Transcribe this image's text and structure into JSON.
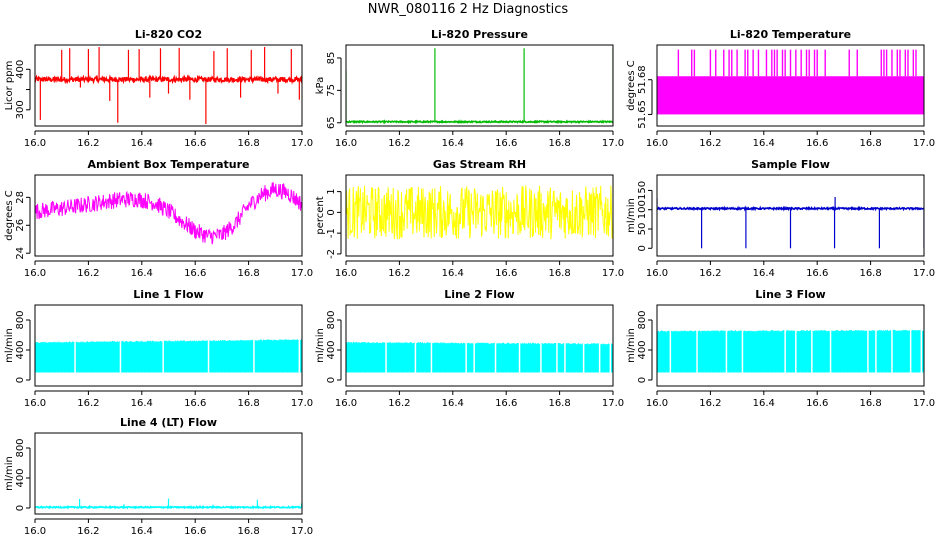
{
  "page_title": "NWR_080116  2 Hz Diagnostics",
  "chart_data": [
    {
      "type": "line",
      "title": "Li-820 CO2",
      "ylabel": "Licor ppm",
      "xlim": [
        16.0,
        17.0
      ],
      "ylim": [
        260,
        460
      ],
      "xticks": [
        "16.0",
        "16.2",
        "16.4",
        "16.6",
        "16.8",
        "17.0"
      ],
      "yticks": [
        300,
        350,
        400
      ],
      "yticklabels": [
        "300",
        "",
        "400"
      ],
      "color": "#ff0000",
      "series": [
        {
          "baseline": 375,
          "noise": 6,
          "spikes": [
            {
              "x": 16.02,
              "y": 275
            },
            {
              "x": 16.1,
              "y": 448
            },
            {
              "x": 16.13,
              "y": 452
            },
            {
              "x": 16.17,
              "y": 355
            },
            {
              "x": 16.2,
              "y": 450
            },
            {
              "x": 16.24,
              "y": 455
            },
            {
              "x": 16.28,
              "y": 322
            },
            {
              "x": 16.31,
              "y": 268
            },
            {
              "x": 16.35,
              "y": 448
            },
            {
              "x": 16.39,
              "y": 450
            },
            {
              "x": 16.43,
              "y": 330
            },
            {
              "x": 16.47,
              "y": 452
            },
            {
              "x": 16.5,
              "y": 340
            },
            {
              "x": 16.54,
              "y": 453
            },
            {
              "x": 16.58,
              "y": 325
            },
            {
              "x": 16.64,
              "y": 265
            },
            {
              "x": 16.67,
              "y": 445
            },
            {
              "x": 16.72,
              "y": 452
            },
            {
              "x": 16.77,
              "y": 330
            },
            {
              "x": 16.81,
              "y": 448
            },
            {
              "x": 16.86,
              "y": 455
            },
            {
              "x": 16.91,
              "y": 340
            },
            {
              "x": 16.96,
              "y": 450
            },
            {
              "x": 16.99,
              "y": 325
            }
          ]
        }
      ]
    },
    {
      "type": "line",
      "title": "Li-820 Pressure",
      "ylabel": "kPa",
      "xlim": [
        16.0,
        17.0
      ],
      "ylim": [
        64,
        89
      ],
      "xticks": [
        "16.0",
        "16.2",
        "16.4",
        "16.6",
        "16.8",
        "17.0"
      ],
      "yticks": [
        65,
        75,
        85
      ],
      "yticklabels": [
        "65",
        "75",
        "85"
      ],
      "color": "#00bb00",
      "series": [
        {
          "baseline": 65.3,
          "noise": 0.2,
          "spikes": [
            {
              "x": 16.0,
              "y": 81
            },
            {
              "x": 16.333,
              "y": 88
            },
            {
              "x": 16.667,
              "y": 88
            },
            {
              "x": 17.0,
              "y": 88
            }
          ]
        }
      ]
    },
    {
      "type": "line",
      "title": "Li-820 Temperature",
      "ylabel": "degrees C",
      "xlim": [
        16.0,
        17.0
      ],
      "ylim": [
        51.64,
        51.71
      ],
      "xticks": [
        "16.0",
        "16.2",
        "16.4",
        "16.6",
        "16.8",
        "17.0"
      ],
      "yticks": [
        51.65,
        51.68
      ],
      "yticklabels": [
        "51.65",
        "51.68"
      ],
      "color": "#ff00ff",
      "series": [
        {
          "band_low": 51.65,
          "band_high": 51.683,
          "spike_top": 51.706,
          "spike_xs": [
            16.08,
            16.13,
            16.14,
            16.2,
            16.22,
            16.25,
            16.27,
            16.28,
            16.3,
            16.33,
            16.34,
            16.36,
            16.38,
            16.41,
            16.43,
            16.44,
            16.45,
            16.47,
            16.48,
            16.5,
            16.52,
            16.54,
            16.56,
            16.57,
            16.59,
            16.6,
            16.63,
            16.72,
            16.75,
            16.84,
            16.85,
            16.86,
            16.88,
            16.9,
            16.91,
            16.93,
            16.94,
            16.96,
            16.97
          ]
        }
      ]
    },
    {
      "type": "line",
      "title": "Ambient Box Temperature",
      "ylabel": "degrees C",
      "xlim": [
        16.0,
        17.0
      ],
      "ylim": [
        23.8,
        29.6
      ],
      "xticks": [
        "16.0",
        "16.2",
        "16.4",
        "16.6",
        "16.8",
        "17.0"
      ],
      "yticks": [
        24,
        26,
        28
      ],
      "yticklabels": [
        "24",
        "26",
        "28"
      ],
      "color": "#ff00ff",
      "series": [
        {
          "x": [
            16.0,
            16.1,
            16.2,
            16.3,
            16.38,
            16.45,
            16.5,
            16.55,
            16.6,
            16.65,
            16.7,
            16.75,
            16.8,
            16.85,
            16.9,
            16.95,
            17.0
          ],
          "y": [
            27.0,
            27.2,
            27.5,
            27.8,
            27.9,
            27.6,
            27.0,
            26.3,
            25.6,
            25.2,
            25.3,
            26.1,
            27.4,
            28.2,
            28.6,
            28.3,
            27.5
          ],
          "noise": 0.6
        }
      ]
    },
    {
      "type": "line",
      "title": "Gas Stream RH",
      "ylabel": "percent",
      "xlim": [
        16.0,
        17.0
      ],
      "ylim": [
        -2.1,
        1.8
      ],
      "xticks": [
        "16.0",
        "16.2",
        "16.4",
        "16.6",
        "16.8",
        "17.0"
      ],
      "yticks": [
        -2,
        -1,
        0,
        1
      ],
      "yticklabels": [
        "-2",
        "-1",
        "0",
        "1"
      ],
      "color": "#ffff00",
      "series": [
        {
          "baseline": 0.0,
          "noise": 1.3,
          "min": -1.9,
          "max": 1.7
        }
      ]
    },
    {
      "type": "line",
      "title": "Sample Flow",
      "ylabel": "ml/min",
      "xlim": [
        16.0,
        17.0
      ],
      "ylim": [
        -20,
        190
      ],
      "xticks": [
        "16.0",
        "16.2",
        "16.4",
        "16.6",
        "16.8",
        "17.0"
      ],
      "yticks": [
        0,
        50,
        100,
        150
      ],
      "yticklabels": [
        "0",
        "50",
        "100",
        "150"
      ],
      "color": "#0000cc",
      "series": [
        {
          "baseline": 103,
          "noise": 2,
          "spikes": [
            {
              "x": 16.0,
              "y": 130
            },
            {
              "x": 16.167,
              "y": 0
            },
            {
              "x": 16.333,
              "y": 0
            },
            {
              "x": 16.5,
              "y": 0
            },
            {
              "x": 16.665,
              "y": 0
            },
            {
              "x": 16.667,
              "y": 133
            },
            {
              "x": 16.833,
              "y": 0
            },
            {
              "x": 17.0,
              "y": 0
            }
          ]
        }
      ]
    },
    {
      "type": "line",
      "title": "Line 1 Flow",
      "ylabel": "ml/min",
      "xlim": [
        16.0,
        17.0
      ],
      "ylim": [
        -80,
        1000
      ],
      "xticks": [
        "16.0",
        "16.2",
        "16.4",
        "16.6",
        "16.8",
        "17.0"
      ],
      "yticks": [
        0,
        400,
        800
      ],
      "yticklabels": [
        "0",
        "400",
        "800"
      ],
      "color": "#00ffff",
      "series": [
        {
          "low": 100,
          "high": 510,
          "high_end": 545,
          "gaps": [
            16.15,
            16.32,
            16.48,
            16.65,
            16.82,
            16.99
          ]
        }
      ]
    },
    {
      "type": "line",
      "title": "Line 2 Flow",
      "ylabel": "ml/min",
      "xlim": [
        16.0,
        17.0
      ],
      "ylim": [
        -80,
        1000
      ],
      "xticks": [
        "16.0",
        "16.2",
        "16.4",
        "16.6",
        "16.8",
        "17.0"
      ],
      "yticks": [
        0,
        400,
        800
      ],
      "yticklabels": [
        "0",
        "400",
        "800"
      ],
      "color": "#00ffff",
      "series": [
        {
          "low": 100,
          "high": 510,
          "high_end": 490,
          "gaps": [
            16.15,
            16.26,
            16.32,
            16.45,
            16.48,
            16.56,
            16.65,
            16.73,
            16.79,
            16.82,
            16.89,
            16.95,
            16.99
          ]
        }
      ]
    },
    {
      "type": "line",
      "title": "Line 3 Flow",
      "ylabel": "ml/min",
      "xlim": [
        16.0,
        17.0
      ],
      "ylim": [
        -80,
        1000
      ],
      "xticks": [
        "16.0",
        "16.2",
        "16.4",
        "16.6",
        "16.8",
        "17.0"
      ],
      "yticks": [
        0,
        400,
        800
      ],
      "yticklabels": [
        "0",
        "400",
        "800"
      ],
      "color": "#00ffff",
      "series": [
        {
          "low": 100,
          "high": 660,
          "high_end": 670,
          "gaps": [
            16.05,
            16.15,
            16.26,
            16.32,
            16.48,
            16.52,
            16.58,
            16.65,
            16.79,
            16.82,
            16.88,
            16.95,
            16.99
          ]
        }
      ]
    },
    {
      "type": "line",
      "title": "Line 4 (LT) Flow",
      "ylabel": "ml/min",
      "xlim": [
        16.0,
        17.0
      ],
      "ylim": [
        -80,
        1000
      ],
      "xticks": [
        "16.0",
        "16.2",
        "16.4",
        "16.6",
        "16.8",
        "17.0"
      ],
      "yticks": [
        0,
        400,
        800
      ],
      "yticklabels": [
        "0",
        "400",
        "800"
      ],
      "color": "#00ffff",
      "series": [
        {
          "baseline": 10,
          "noise": 8,
          "spikes": [
            {
              "x": 16.167,
              "y": 120
            },
            {
              "x": 16.333,
              "y": 50
            },
            {
              "x": 16.5,
              "y": 125
            },
            {
              "x": 16.667,
              "y": 45
            },
            {
              "x": 16.833,
              "y": 110
            },
            {
              "x": 16.998,
              "y": 60
            }
          ]
        }
      ]
    }
  ]
}
